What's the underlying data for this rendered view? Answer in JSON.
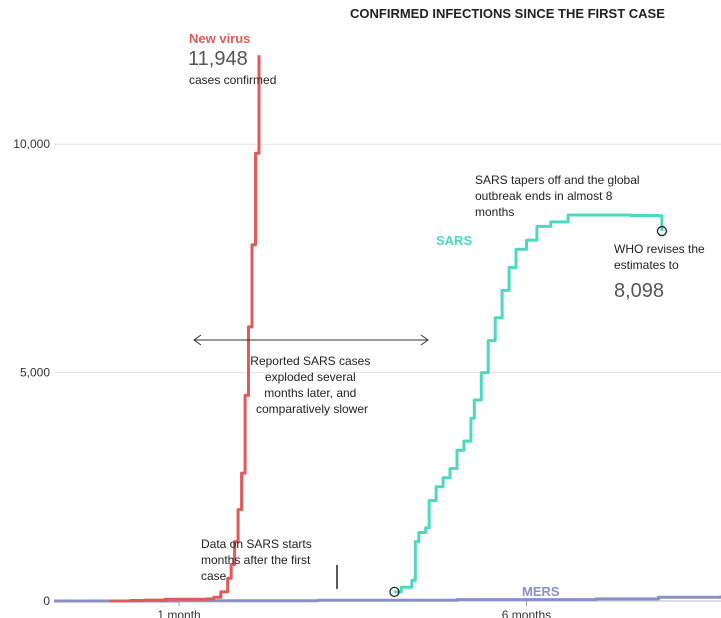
{
  "chart_data": {
    "type": "line",
    "title": "CONFIRMED INFECTIONS SINCE THE FIRST CASE",
    "xlabel": "",
    "ylabel": "",
    "y_ticks": [
      {
        "value": 0,
        "label": "0"
      },
      {
        "value": 5000,
        "label": "5,000"
      },
      {
        "value": 10000,
        "label": "10,000"
      }
    ],
    "x_ticks": [
      {
        "value": 1,
        "label": "1 month"
      },
      {
        "value": 6,
        "label": "6 months"
      }
    ],
    "x_unit": "months since first case",
    "xlim": [
      -0.8,
      8.8
    ],
    "ylim": [
      0,
      12500
    ],
    "grid": "horizontal",
    "legend": "direct labels",
    "series": [
      {
        "name": "New virus",
        "color": "#e05a5a",
        "points": [
          [
            0.0,
            0
          ],
          [
            0.3,
            10
          ],
          [
            0.5,
            20
          ],
          [
            0.8,
            40
          ],
          [
            1.0,
            40
          ],
          [
            1.2,
            40
          ],
          [
            1.4,
            45
          ],
          [
            1.5,
            80
          ],
          [
            1.6,
            200
          ],
          [
            1.7,
            500
          ],
          [
            1.75,
            800
          ],
          [
            1.8,
            1300
          ],
          [
            1.85,
            2000
          ],
          [
            1.9,
            2800
          ],
          [
            1.95,
            4500
          ],
          [
            2.0,
            6000
          ],
          [
            2.05,
            7800
          ],
          [
            2.1,
            9800
          ],
          [
            2.15,
            11948
          ]
        ]
      },
      {
        "name": "SARS",
        "color": "#4dd9bf",
        "points": [
          [
            4.1,
            200
          ],
          [
            4.2,
            300
          ],
          [
            4.35,
            450
          ],
          [
            4.4,
            1300
          ],
          [
            4.45,
            1500
          ],
          [
            4.55,
            1600
          ],
          [
            4.6,
            2200
          ],
          [
            4.7,
            2500
          ],
          [
            4.8,
            2700
          ],
          [
            4.9,
            2900
          ],
          [
            5.0,
            3300
          ],
          [
            5.1,
            3500
          ],
          [
            5.2,
            4000
          ],
          [
            5.25,
            4400
          ],
          [
            5.35,
            5000
          ],
          [
            5.45,
            5700
          ],
          [
            5.55,
            6200
          ],
          [
            5.65,
            6800
          ],
          [
            5.75,
            7300
          ],
          [
            5.85,
            7700
          ],
          [
            6.0,
            7900
          ],
          [
            6.15,
            8200
          ],
          [
            6.35,
            8300
          ],
          [
            6.6,
            8450
          ],
          [
            7.0,
            8450
          ],
          [
            7.5,
            8440
          ],
          [
            7.9,
            8430
          ],
          [
            7.95,
            8098
          ]
        ]
      },
      {
        "name": "MERS",
        "color": "#8a8fc7",
        "points": [
          [
            -0.8,
            0
          ],
          [
            1.0,
            5
          ],
          [
            3.0,
            15
          ],
          [
            5.0,
            30
          ],
          [
            7.0,
            45
          ],
          [
            7.9,
            80
          ],
          [
            8.8,
            120
          ]
        ]
      }
    ],
    "annotations": {
      "new_virus_label": "New virus",
      "new_virus_value": "11,948",
      "new_virus_caption": "cases confirmed",
      "sars_label": "SARS",
      "mers_label": "MERS",
      "sars_end_lines": [
        "SARS tapers off and the global",
        "outbreak ends in almost 8",
        "months"
      ],
      "who_lines": [
        "WHO revises the",
        "estimates to"
      ],
      "who_value": "8,098",
      "gap_lines": [
        "Reported SARS cases",
        "exploded several",
        "months later, and",
        "comparatively slower"
      ],
      "sars_start_lines": [
        "Data on SARS starts",
        "months after the first",
        "case"
      ]
    }
  }
}
